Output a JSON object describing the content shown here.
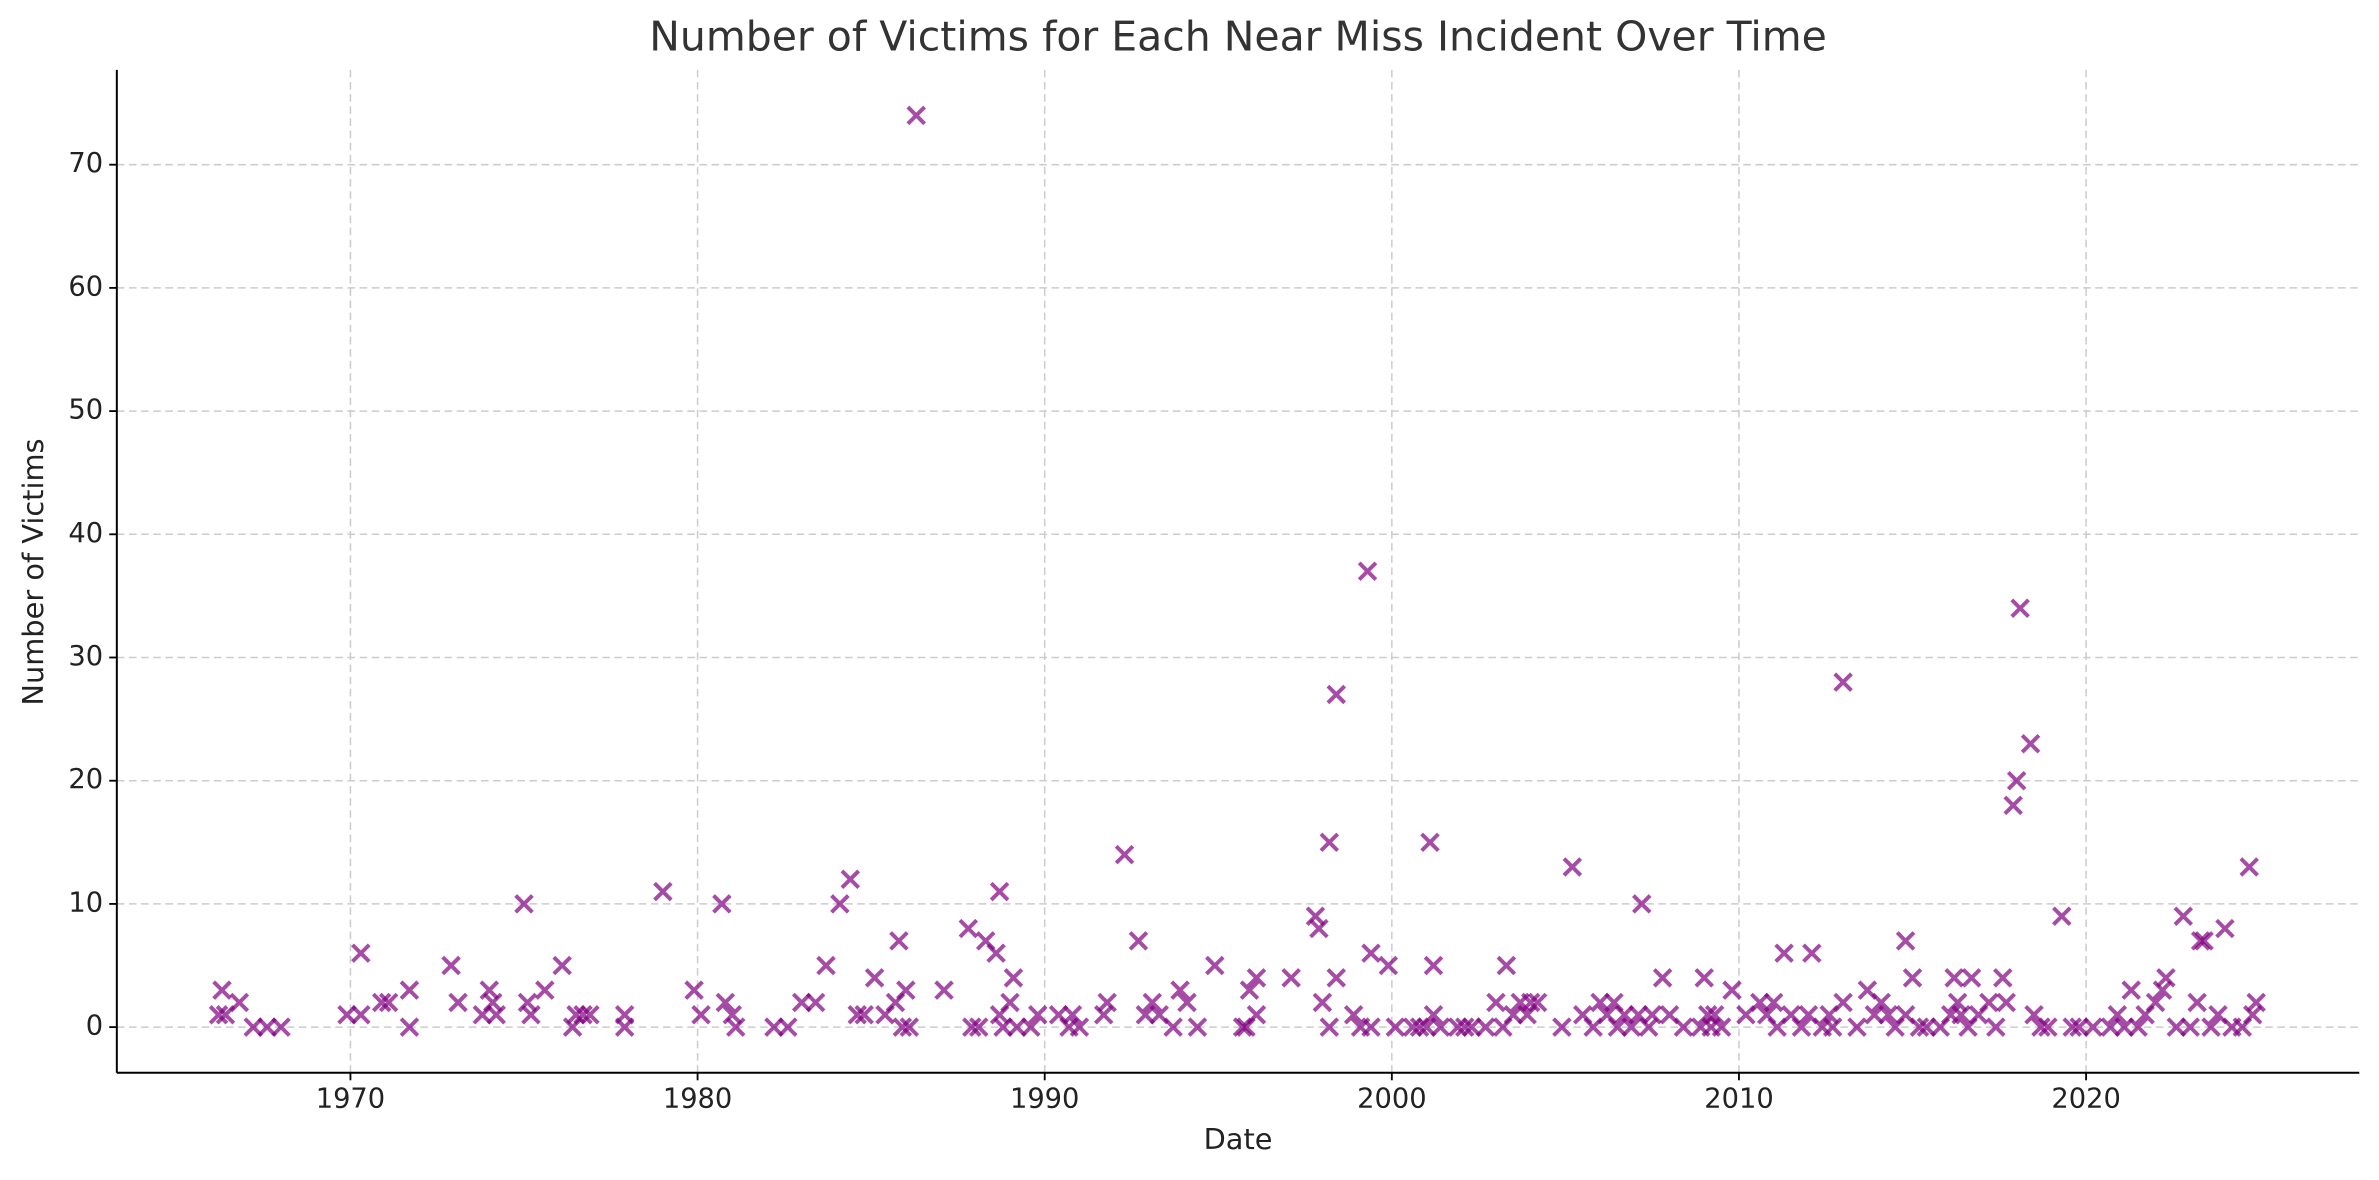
{
  "chart_data": {
    "type": "scatter",
    "title": "Number of Victims for Each Near Miss Incident Over Time",
    "x_label": "Date",
    "y_label": "Number of Victims",
    "color": "#800080",
    "marker": "x",
    "grid": true,
    "xlim": [
      1963.27,
      2027.87
    ],
    "ylim": [
      -3.7,
      77.7
    ],
    "xticks": [
      1970,
      1980,
      1990,
      2000,
      2010,
      2020
    ],
    "yticks": [
      0,
      10,
      20,
      30,
      40,
      50,
      60,
      70
    ],
    "x": [
      1966.2,
      1966.3,
      1966.4,
      1966.8,
      1967.2,
      1967.6,
      1968.0,
      1969.9,
      1970.3,
      1970.3,
      1970.9,
      1971.1,
      1971.7,
      1971.7,
      1972.9,
      1973.1,
      1973.8,
      1974.0,
      1974.1,
      1974.2,
      1975.0,
      1975.1,
      1975.2,
      1975.6,
      1976.1,
      1976.4,
      1976.5,
      1976.7,
      1976.9,
      1977.9,
      1977.9,
      1979.0,
      1979.9,
      1980.1,
      1980.7,
      1980.8,
      1981.0,
      1981.1,
      1982.2,
      1982.6,
      1983.0,
      1983.4,
      1983.7,
      1984.1,
      1984.4,
      1984.6,
      1984.8,
      1985.1,
      1985.4,
      1985.7,
      1985.8,
      1986.0,
      1985.9,
      1986.1,
      1986.3,
      1987.1,
      1987.8,
      1987.9,
      1988.1,
      1988.3,
      1988.6,
      1988.7,
      1988.7,
      1988.8,
      1989.0,
      1989.1,
      1989.2,
      1989.6,
      1989.8,
      1990.4,
      1990.7,
      1990.8,
      1991.0,
      1991.7,
      1991.8,
      1992.3,
      1992.7,
      1992.9,
      1993.1,
      1993.3,
      1993.7,
      1993.9,
      1994.1,
      1994.4,
      1994.9,
      1995.7,
      1995.8,
      1995.9,
      1996.1,
      1996.1,
      1997.1,
      1997.8,
      1997.9,
      1998.0,
      1998.2,
      1998.2,
      1998.4,
      1998.4,
      1998.9,
      1999.1,
      1999.3,
      1999.4,
      1999.4,
      1999.9,
      2000.1,
      2000.6,
      2000.8,
      2001.0,
      2001.1,
      2001.2,
      2001.2,
      2001.4,
      2001.9,
      2002.1,
      2002.3,
      2002.7,
      2003.0,
      2003.2,
      2003.3,
      2003.5,
      2003.7,
      2003.9,
      2004.0,
      2004.2,
      2004.9,
      2005.2,
      2005.5,
      2005.8,
      2006.0,
      2006.2,
      2006.4,
      2006.5,
      2006.7,
      2006.9,
      2007.1,
      2007.2,
      2007.4,
      2007.5,
      2007.8,
      2008.0,
      2008.4,
      2008.9,
      2009.0,
      2009.1,
      2009.2,
      2009.3,
      2009.5,
      2009.8,
      2010.2,
      2010.6,
      2010.8,
      2011.0,
      2011.1,
      2011.3,
      2011.5,
      2011.8,
      2012.0,
      2012.1,
      2012.4,
      2012.6,
      2012.7,
      2013.0,
      2013.0,
      2013.4,
      2013.7,
      2013.9,
      2014.1,
      2014.3,
      2014.5,
      2014.8,
      2014.8,
      2015.0,
      2015.2,
      2015.4,
      2015.8,
      2016.1,
      2016.2,
      2016.3,
      2016.4,
      2016.6,
      2016.7,
      2016.9,
      2017.2,
      2017.4,
      2017.6,
      2017.7,
      2017.9,
      2018.0,
      2018.1,
      2018.4,
      2018.5,
      2018.7,
      2018.9,
      2019.3,
      2019.6,
      2019.8,
      2020.2,
      2020.7,
      2020.9,
      2021.1,
      2021.3,
      2021.5,
      2021.7,
      2022.0,
      2022.2,
      2022.3,
      2022.6,
      2022.8,
      2023.0,
      2023.2,
      2023.3,
      2023.4,
      2023.6,
      2023.8,
      2024.0,
      2024.2,
      2024.5,
      2024.7,
      2024.8,
      2024.9
    ],
    "values": [
      1,
      3,
      1,
      2,
      0,
      0,
      0,
      1,
      6,
      1,
      2,
      2,
      0,
      3,
      5,
      2,
      1,
      3,
      2,
      1,
      10,
      2,
      1,
      3,
      5,
      0,
      1,
      1,
      1,
      0,
      1,
      11,
      3,
      1,
      10,
      2,
      1,
      0,
      0,
      0,
      2,
      2,
      5,
      10,
      12,
      1,
      1,
      4,
      1,
      2,
      7,
      3,
      0,
      0,
      74,
      3,
      8,
      0,
      0,
      7,
      6,
      11,
      1,
      0,
      2,
      4,
      0,
      0,
      1,
      1,
      0,
      1,
      0,
      1,
      2,
      14,
      7,
      1,
      2,
      1,
      0,
      3,
      2,
      0,
      5,
      0,
      0,
      3,
      1,
      4,
      4,
      9,
      8,
      2,
      15,
      0,
      27,
      4,
      1,
      0,
      37,
      6,
      0,
      5,
      0,
      0,
      0,
      0,
      15,
      5,
      1,
      0,
      0,
      0,
      0,
      0,
      2,
      0,
      5,
      1,
      2,
      1,
      2,
      2,
      0,
      13,
      1,
      0,
      2,
      1,
      2,
      0,
      1,
      0,
      1,
      10,
      0,
      1,
      4,
      1,
      0,
      0,
      4,
      1,
      0,
      1,
      0,
      3,
      1,
      2,
      1,
      2,
      0,
      6,
      1,
      0,
      1,
      6,
      0,
      1,
      0,
      28,
      2,
      0,
      3,
      1,
      2,
      1,
      0,
      1,
      7,
      4,
      0,
      0,
      0,
      1,
      4,
      2,
      1,
      0,
      4,
      1,
      2,
      0,
      4,
      2,
      18,
      20,
      34,
      23,
      1,
      0,
      0,
      9,
      0,
      0,
      0,
      0,
      1,
      0,
      3,
      0,
      1,
      2,
      3,
      4,
      0,
      9,
      0,
      2,
      7,
      7,
      0,
      1,
      8,
      0,
      0,
      13,
      1,
      2
    ]
  }
}
